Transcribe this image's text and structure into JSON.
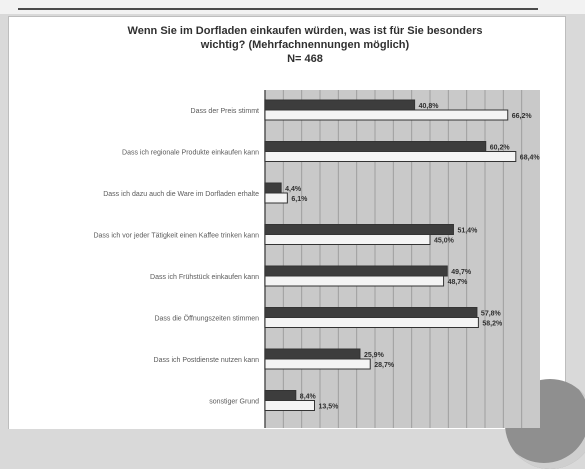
{
  "chart_data": {
    "type": "bar",
    "orientation": "horizontal",
    "title_lines": [
      "Wenn Sie im Dorfladen einkaufen würden, was ist für Sie besonders",
      "wichtig? (Mehrfachnennungen möglich)",
      "N= 468"
    ],
    "categories": [
      "Dass der Preis stimmt",
      "Dass ich regionale Produkte einkaufen kann",
      "Dass ich dazu auch die Ware im Dorfladen erhalte",
      "Dass ich vor jeder Tätigkeit einen Kaffee trinken kann",
      "Dass ich Frühstück einkaufen kann",
      "Dass die Öffnungszeiten stimmen",
      "Dass ich Postdienste nutzen kann",
      "sonstiger Grund"
    ],
    "series": [
      {
        "values": [
          40.8,
          60.2,
          4.4,
          51.4,
          49.7,
          57.8,
          25.9,
          8.4
        ],
        "labels": [
          "40,8%",
          "60,2%",
          "4,4%",
          "51,4%",
          "49,7%",
          "57,8%",
          "25,9%",
          "8,4%"
        ]
      },
      {
        "values": [
          66.2,
          68.4,
          6.1,
          45.0,
          48.7,
          58.2,
          28.7,
          13.5
        ],
        "labels": [
          "66,2%",
          "68,4%",
          "6,1%",
          "45,0%",
          "48,7%",
          "58,2%",
          "28,7%",
          "13,5%"
        ]
      }
    ],
    "xlim": [
      0,
      75
    ],
    "grid": true,
    "colors": {
      "series_dark": "#3d3d3d",
      "series_light": "#f4f4f4",
      "plot_bg": "#c9c9c9",
      "grid": "#9e9e9e"
    }
  }
}
